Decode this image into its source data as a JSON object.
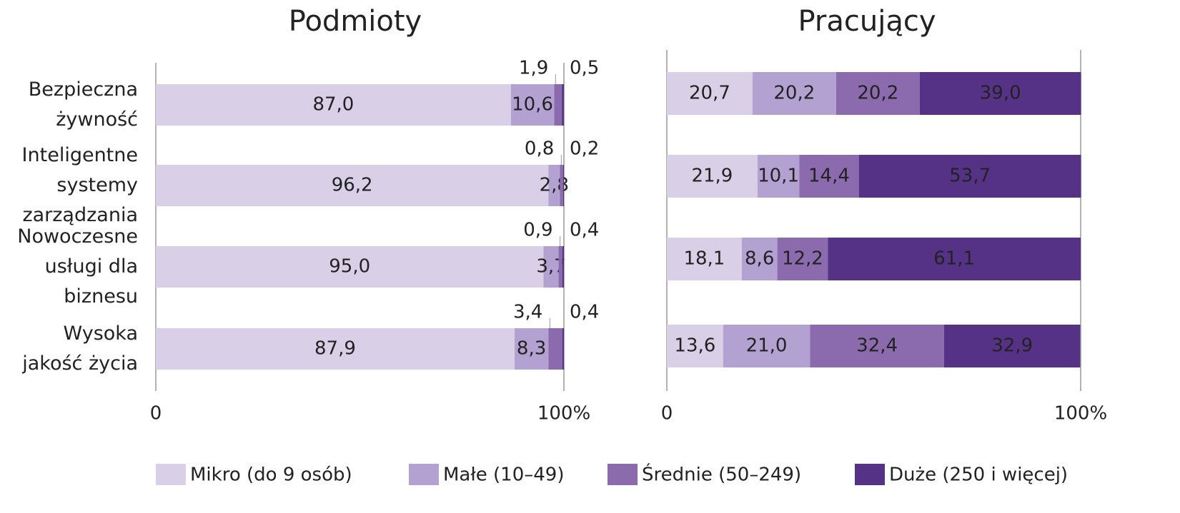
{
  "chart_data": [
    {
      "type": "stacked-bar",
      "title": "Podmioty",
      "categories": [
        "Bezpieczna żywność",
        "Inteligentne systemy zarządzania",
        "Nowoczesne usługi dla biznesu",
        "Wysoka jakość życia"
      ],
      "series": [
        {
          "name": "Mikro (do 9 osób)",
          "color": "#d9d0e8",
          "values": [
            87.0,
            96.2,
            95.0,
            87.9
          ],
          "value_labels": [
            "87,0",
            "96,2",
            "95,0",
            "87,9"
          ]
        },
        {
          "name": "Małe (10–49)",
          "color": "#b3a2d1",
          "values": [
            10.6,
            2.8,
            3.7,
            8.3
          ],
          "value_labels": [
            "10,6",
            "2,8",
            "3,7",
            "8,3"
          ]
        },
        {
          "name": "Średnie (50–249)",
          "color": "#8b6aae",
          "values": [
            1.9,
            0.8,
            0.9,
            3.4
          ],
          "value_labels": [
            "1,9",
            "0,8",
            "0,9",
            "3,4"
          ]
        },
        {
          "name": "Duże (250 i więcej)",
          "color": "#553285",
          "values": [
            0.5,
            0.2,
            0.4,
            0.4
          ],
          "value_labels": [
            "0,5",
            "0,2",
            "0,4",
            "0,4"
          ]
        }
      ],
      "xlim": [
        0,
        100
      ],
      "xticks": [
        0,
        {
          "value": 100,
          "label": "100%"
        }
      ],
      "grid": true
    },
    {
      "type": "stacked-bar",
      "title": "Pracujący",
      "series": [
        {
          "color": "#d9d0e8",
          "values": [
            20.7,
            21.9,
            18.1,
            13.6
          ],
          "value_labels": [
            "20,7",
            "21,9",
            "18,1",
            "13,6"
          ]
        },
        {
          "color": "#b3a2d1",
          "values": [
            20.2,
            10.1,
            8.6,
            21.0
          ],
          "value_labels": [
            "20,2",
            "10,1",
            "8,6",
            "21,0"
          ]
        },
        {
          "color": "#8b6aae",
          "values": [
            20.2,
            14.4,
            12.2,
            32.4
          ],
          "value_labels": [
            "20,2",
            "14,4",
            "12,2",
            "32,4"
          ]
        },
        {
          "color": "#553285",
          "values": [
            39.0,
            53.7,
            61.1,
            32.9
          ],
          "value_labels": [
            "39,0",
            "53,7",
            "61,1",
            "32,9"
          ]
        }
      ],
      "xlim": [
        0,
        100
      ],
      "xticks": [
        0,
        {
          "value": 100,
          "label": "100%"
        }
      ],
      "grid": true
    }
  ]
}
